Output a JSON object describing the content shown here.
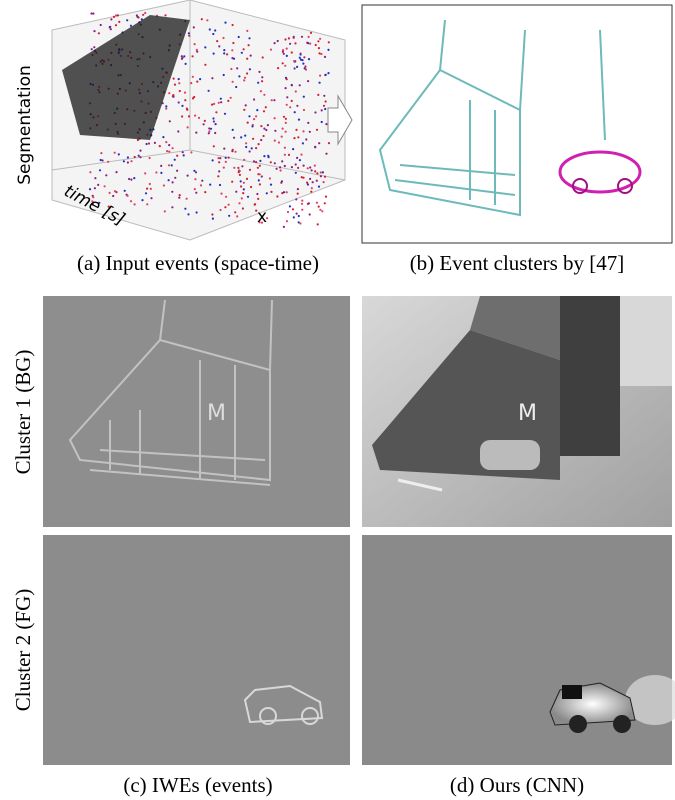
{
  "plot_labels": {
    "z_axis": "Segmentation",
    "time_axis": "time [s]",
    "x_axis": "x"
  },
  "panels": [
    {
      "caption": "(a) Input events (space-time)"
    },
    {
      "caption": "(b) Event clusters by [47]"
    },
    {
      "caption": "(c) IWEs (events)"
    },
    {
      "caption": "(d) Ours (CNN)"
    }
  ],
  "row_labels": [
    "Cluster 1  (BG)",
    "Cluster 2  (FG)"
  ]
}
